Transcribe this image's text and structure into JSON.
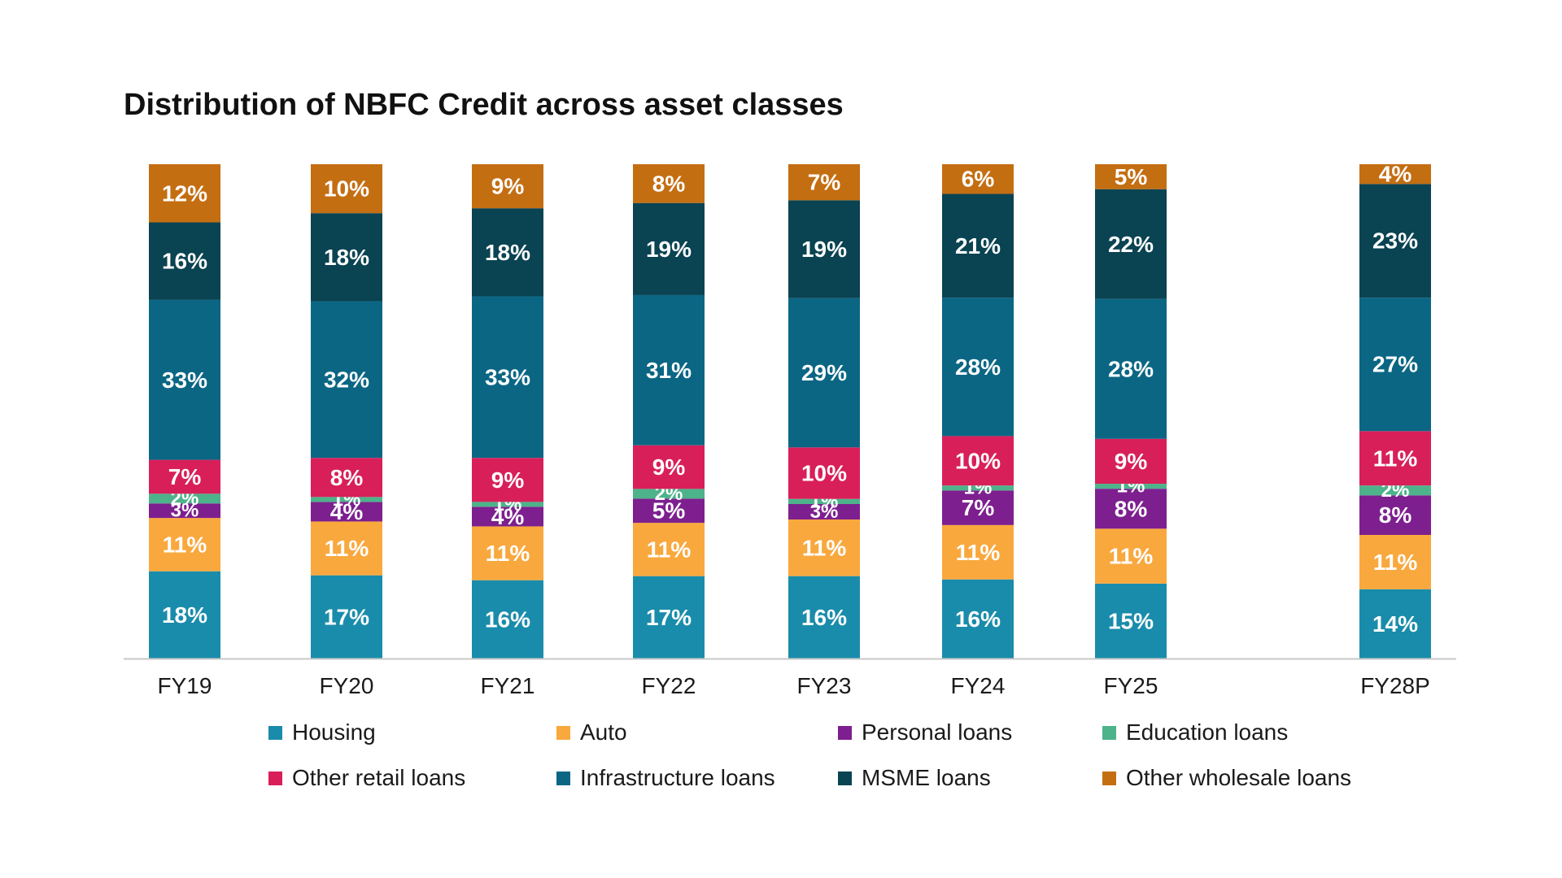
{
  "chart_data": {
    "type": "bar",
    "stacked": true,
    "title": "Distribution of NBFC Credit across asset classes",
    "xlabel": "",
    "ylabel": "",
    "ylim": [
      0,
      100
    ],
    "grid": false,
    "legend_position": "bottom",
    "categories": [
      "FY19",
      "FY20",
      "FY21",
      "FY22",
      "FY23",
      "FY24",
      "FY25",
      "FY28P"
    ],
    "series": [
      {
        "name": "Housing",
        "color": "#1a8cab",
        "values": [
          18,
          17,
          16,
          17,
          16,
          16,
          15,
          14
        ]
      },
      {
        "name": "Auto",
        "color": "#f9a83e",
        "values": [
          11,
          11,
          11,
          11,
          11,
          11,
          11,
          11
        ]
      },
      {
        "name": "Personal loans",
        "color": "#7d1f8f",
        "values": [
          3,
          4,
          4,
          5,
          3,
          7,
          8,
          8
        ]
      },
      {
        "name": "Education loans",
        "color": "#4db38a",
        "values": [
          2,
          1,
          1,
          2,
          1,
          1,
          1,
          2
        ]
      },
      {
        "name": "Other retail loans",
        "color": "#d81f5a",
        "values": [
          7,
          8,
          9,
          9,
          10,
          10,
          9,
          11
        ]
      },
      {
        "name": "Infrastructure loans",
        "color": "#0b6684",
        "values": [
          33,
          32,
          33,
          31,
          29,
          28,
          28,
          27
        ]
      },
      {
        "name": "MSME loans",
        "color": "#0a4352",
        "values": [
          16,
          18,
          18,
          19,
          19,
          21,
          22,
          23
        ]
      },
      {
        "name": "Other wholesale loans",
        "color": "#c46e12",
        "values": [
          12,
          10,
          9,
          8,
          7,
          6,
          5,
          4
        ]
      }
    ]
  }
}
